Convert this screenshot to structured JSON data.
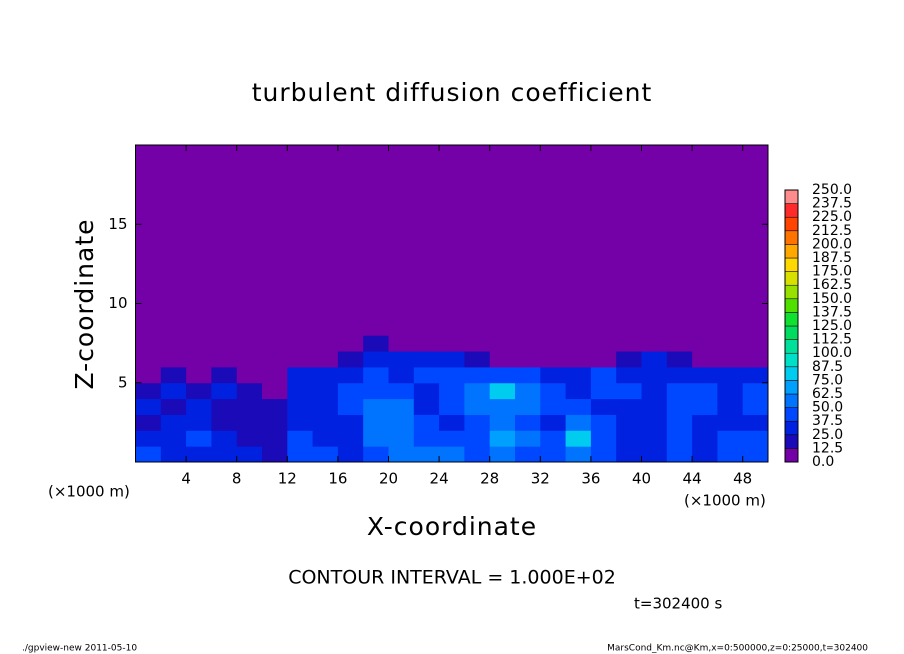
{
  "chart_data": {
    "type": "heatmap",
    "title": "turbulent diffusion coefficient",
    "x_label": "X-coordinate",
    "y_label": "Z-coordinate",
    "x_unit_label": "(×1000 m)",
    "interval_note": "CONTOUR INTERVAL = 1.000E+02",
    "time_note": "t=302400 s",
    "footer_left": "./gpview-new   2011-05-10",
    "footer_right": "MarsCond_Km.nc@Km,x=0:500000,z=0:25000,t=302400",
    "xlim": [
      0,
      50
    ],
    "ylim": [
      0,
      20
    ],
    "xticks": [
      4,
      8,
      12,
      16,
      20,
      24,
      28,
      32,
      36,
      40,
      44,
      48
    ],
    "yticks": [
      5,
      10,
      15
    ],
    "x_edges": [
      0,
      2,
      4,
      6,
      8,
      10,
      12,
      14,
      16,
      18,
      20,
      22,
      24,
      26,
      28,
      30,
      32,
      34,
      36,
      38,
      40,
      42,
      44,
      46,
      48,
      50
    ],
    "y_edges": [
      0,
      1,
      2,
      3,
      4,
      5,
      6,
      7,
      8,
      10,
      20
    ],
    "values": [
      [
        40,
        30,
        35,
        30,
        25,
        20,
        45,
        40,
        35,
        40,
        50,
        55,
        50,
        45,
        60,
        45,
        40,
        55,
        40,
        35,
        30,
        40,
        35,
        40,
        45
      ],
      [
        30,
        35,
        40,
        25,
        20,
        20,
        40,
        35,
        30,
        50,
        60,
        45,
        40,
        40,
        65,
        50,
        45,
        75,
        45,
        35,
        35,
        40,
        35,
        40,
        40
      ],
      [
        20,
        30,
        25,
        20,
        15,
        15,
        35,
        35,
        35,
        60,
        55,
        40,
        35,
        45,
        55,
        45,
        35,
        60,
        40,
        30,
        35,
        40,
        35,
        35,
        35
      ],
      [
        25,
        20,
        30,
        20,
        15,
        15,
        30,
        35,
        40,
        55,
        50,
        35,
        40,
        50,
        50,
        60,
        45,
        45,
        35,
        35,
        35,
        45,
        40,
        35,
        40
      ],
      [
        20,
        25,
        20,
        25,
        15,
        10,
        35,
        35,
        40,
        45,
        40,
        35,
        45,
        50,
        80,
        55,
        40,
        35,
        40,
        40,
        35,
        40,
        40,
        35,
        40
      ],
      [
        10,
        15,
        10,
        20,
        5,
        5,
        30,
        30,
        35,
        40,
        35,
        40,
        40,
        40,
        45,
        40,
        35,
        30,
        40,
        35,
        35,
        35,
        35,
        30,
        30
      ],
      [
        0,
        0,
        0,
        0,
        0,
        0,
        0,
        0,
        20,
        30,
        30,
        35,
        30,
        20,
        10,
        10,
        5,
        0,
        5,
        20,
        25,
        20,
        10,
        0,
        0
      ],
      [
        0,
        0,
        0,
        0,
        0,
        0,
        0,
        0,
        0,
        15,
        10,
        0,
        0,
        0,
        0,
        0,
        0,
        0,
        0,
        0,
        0,
        0,
        0,
        0,
        0
      ],
      [
        0,
        0,
        0,
        0,
        0,
        0,
        0,
        0,
        0,
        5,
        0,
        0,
        0,
        0,
        0,
        0,
        0,
        0,
        0,
        0,
        0,
        0,
        0,
        0,
        0
      ],
      [
        0,
        0,
        0,
        0,
        0,
        0,
        0,
        0,
        0,
        0,
        0,
        0,
        0,
        0,
        0,
        0,
        0,
        0,
        0,
        0,
        0,
        0,
        0,
        0,
        0
      ]
    ],
    "levels": [
      {
        "value": 0,
        "label": "0.0"
      },
      {
        "value": 12.5,
        "label": "12.5"
      },
      {
        "value": 25,
        "label": "25.0"
      },
      {
        "value": 37.5,
        "label": "37.5"
      },
      {
        "value": 50,
        "label": "50.0"
      },
      {
        "value": 62.5,
        "label": "62.5"
      },
      {
        "value": 75,
        "label": "75.0"
      },
      {
        "value": 87.5,
        "label": "87.5"
      },
      {
        "value": 100,
        "label": "100.0"
      },
      {
        "value": 112.5,
        "label": "112.5"
      },
      {
        "value": 125,
        "label": "125.0"
      },
      {
        "value": 137.5,
        "label": "137.5"
      },
      {
        "value": 150,
        "label": "150.0"
      },
      {
        "value": 162.5,
        "label": "162.5"
      },
      {
        "value": 175,
        "label": "175.0"
      },
      {
        "value": 187.5,
        "label": "187.5"
      },
      {
        "value": 200,
        "label": "200.0"
      },
      {
        "value": 212.5,
        "label": "212.5"
      },
      {
        "value": 225,
        "label": "225.0"
      },
      {
        "value": 237.5,
        "label": "237.5"
      },
      {
        "value": 250,
        "label": "250.0"
      }
    ],
    "level_colors": [
      "#7400a8",
      "#1a0ab8",
      "#0022e0",
      "#0048ff",
      "#0074ff",
      "#00a0ff",
      "#00ccf0",
      "#00e0c8",
      "#00e09a",
      "#00dc60",
      "#10e030",
      "#50e000",
      "#98e000",
      "#d8e000",
      "#ffd800",
      "#ffa800",
      "#ff7400",
      "#ff4400",
      "#ff2a2a",
      "#ff8c8c"
    ]
  }
}
